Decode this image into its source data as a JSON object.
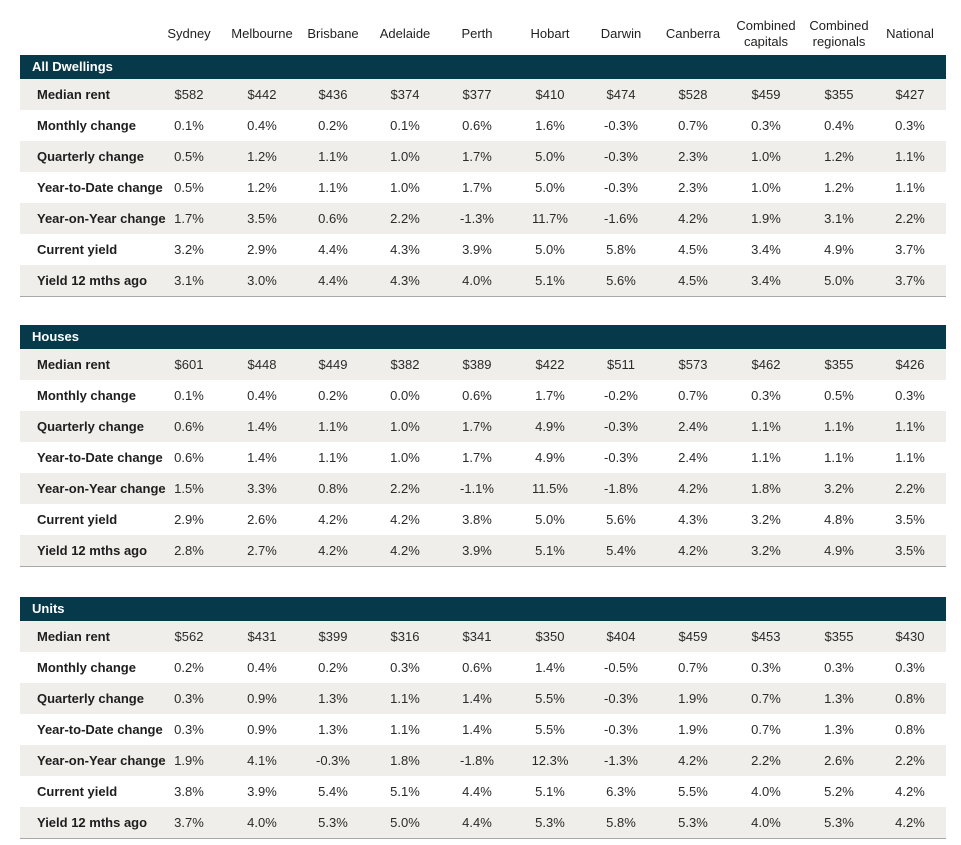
{
  "columns": [
    "Sydney",
    "Melbourne",
    "Brisbane",
    "Adelaide",
    "Perth",
    "Hobart",
    "Darwin",
    "Canberra",
    "Combined capitals",
    "Combined regionals",
    "National"
  ],
  "column_lines": [
    [
      "Sydney"
    ],
    [
      "Melbourne"
    ],
    [
      "Brisbane"
    ],
    [
      "Adelaide"
    ],
    [
      "Perth"
    ],
    [
      "Hobart"
    ],
    [
      "Darwin"
    ],
    [
      "Canberra"
    ],
    [
      "Combined",
      "capitals"
    ],
    [
      "Combined",
      "regionals"
    ],
    [
      "National"
    ]
  ],
  "sections": [
    {
      "title": "All Dwellings",
      "rows": [
        {
          "label": "Median rent",
          "values": [
            "$582",
            "$442",
            "$436",
            "$374",
            "$377",
            "$410",
            "$474",
            "$528",
            "$459",
            "$355",
            "$427"
          ]
        },
        {
          "label": "Monthly change",
          "values": [
            "0.1%",
            "0.4%",
            "0.2%",
            "0.1%",
            "0.6%",
            "1.6%",
            "-0.3%",
            "0.7%",
            "0.3%",
            "0.4%",
            "0.3%"
          ]
        },
        {
          "label": "Quarterly change",
          "values": [
            "0.5%",
            "1.2%",
            "1.1%",
            "1.0%",
            "1.7%",
            "5.0%",
            "-0.3%",
            "2.3%",
            "1.0%",
            "1.2%",
            "1.1%"
          ]
        },
        {
          "label": "Year-to-Date change",
          "values": [
            "0.5%",
            "1.2%",
            "1.1%",
            "1.0%",
            "1.7%",
            "5.0%",
            "-0.3%",
            "2.3%",
            "1.0%",
            "1.2%",
            "1.1%"
          ]
        },
        {
          "label": "Year-on-Year change",
          "values": [
            "1.7%",
            "3.5%",
            "0.6%",
            "2.2%",
            "-1.3%",
            "11.7%",
            "-1.6%",
            "4.2%",
            "1.9%",
            "3.1%",
            "2.2%"
          ]
        },
        {
          "label": "Current yield",
          "values": [
            "3.2%",
            "2.9%",
            "4.4%",
            "4.3%",
            "3.9%",
            "5.0%",
            "5.8%",
            "4.5%",
            "3.4%",
            "4.9%",
            "3.7%"
          ]
        },
        {
          "label": "Yield 12 mths ago",
          "values": [
            "3.1%",
            "3.0%",
            "4.4%",
            "4.3%",
            "4.0%",
            "5.1%",
            "5.6%",
            "4.5%",
            "3.4%",
            "5.0%",
            "3.7%"
          ]
        }
      ]
    },
    {
      "title": "Houses",
      "rows": [
        {
          "label": "Median rent",
          "values": [
            "$601",
            "$448",
            "$449",
            "$382",
            "$389",
            "$422",
            "$511",
            "$573",
            "$462",
            "$355",
            "$426"
          ]
        },
        {
          "label": "Monthly change",
          "values": [
            "0.1%",
            "0.4%",
            "0.2%",
            "0.0%",
            "0.6%",
            "1.7%",
            "-0.2%",
            "0.7%",
            "0.3%",
            "0.5%",
            "0.3%"
          ]
        },
        {
          "label": "Quarterly change",
          "values": [
            "0.6%",
            "1.4%",
            "1.1%",
            "1.0%",
            "1.7%",
            "4.9%",
            "-0.3%",
            "2.4%",
            "1.1%",
            "1.1%",
            "1.1%"
          ]
        },
        {
          "label": "Year-to-Date change",
          "values": [
            "0.6%",
            "1.4%",
            "1.1%",
            "1.0%",
            "1.7%",
            "4.9%",
            "-0.3%",
            "2.4%",
            "1.1%",
            "1.1%",
            "1.1%"
          ]
        },
        {
          "label": "Year-on-Year change",
          "values": [
            "1.5%",
            "3.3%",
            "0.8%",
            "2.2%",
            "-1.1%",
            "11.5%",
            "-1.8%",
            "4.2%",
            "1.8%",
            "3.2%",
            "2.2%"
          ]
        },
        {
          "label": "Current yield",
          "values": [
            "2.9%",
            "2.6%",
            "4.2%",
            "4.2%",
            "3.8%",
            "5.0%",
            "5.6%",
            "4.3%",
            "3.2%",
            "4.8%",
            "3.5%"
          ]
        },
        {
          "label": "Yield 12 mths ago",
          "values": [
            "2.8%",
            "2.7%",
            "4.2%",
            "4.2%",
            "3.9%",
            "5.1%",
            "5.4%",
            "4.2%",
            "3.2%",
            "4.9%",
            "3.5%"
          ]
        }
      ]
    },
    {
      "title": "Units",
      "rows": [
        {
          "label": "Median rent",
          "values": [
            "$562",
            "$431",
            "$399",
            "$316",
            "$341",
            "$350",
            "$404",
            "$459",
            "$453",
            "$355",
            "$430"
          ]
        },
        {
          "label": "Monthly change",
          "values": [
            "0.2%",
            "0.4%",
            "0.2%",
            "0.3%",
            "0.6%",
            "1.4%",
            "-0.5%",
            "0.7%",
            "0.3%",
            "0.3%",
            "0.3%"
          ]
        },
        {
          "label": "Quarterly change",
          "values": [
            "0.3%",
            "0.9%",
            "1.3%",
            "1.1%",
            "1.4%",
            "5.5%",
            "-0.3%",
            "1.9%",
            "0.7%",
            "1.3%",
            "0.8%"
          ]
        },
        {
          "label": "Year-to-Date change",
          "values": [
            "0.3%",
            "0.9%",
            "1.3%",
            "1.1%",
            "1.4%",
            "5.5%",
            "-0.3%",
            "1.9%",
            "0.7%",
            "1.3%",
            "0.8%"
          ]
        },
        {
          "label": "Year-on-Year change",
          "values": [
            "1.9%",
            "4.1%",
            "-0.3%",
            "1.8%",
            "-1.8%",
            "12.3%",
            "-1.3%",
            "4.2%",
            "2.2%",
            "2.6%",
            "2.2%"
          ]
        },
        {
          "label": "Current yield",
          "values": [
            "3.8%",
            "3.9%",
            "5.4%",
            "5.1%",
            "4.4%",
            "5.1%",
            "6.3%",
            "5.5%",
            "4.0%",
            "5.2%",
            "4.2%"
          ]
        },
        {
          "label": "Yield 12 mths ago",
          "values": [
            "3.7%",
            "4.0%",
            "5.3%",
            "5.0%",
            "4.4%",
            "5.3%",
            "5.8%",
            "5.3%",
            "4.0%",
            "5.3%",
            "4.2%"
          ]
        }
      ]
    }
  ],
  "colors": {
    "band": "#063a4b",
    "shade": "#efeeea",
    "rule": "#a9a9a9"
  }
}
